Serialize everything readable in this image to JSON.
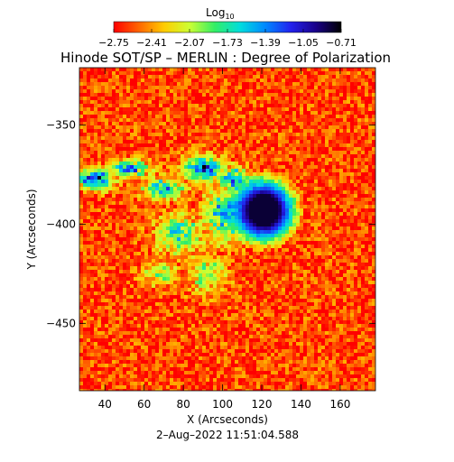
{
  "chart_data": {
    "type": "heatmap",
    "title": "Hinode SOT/SP – MERLIN : Degree of Polarization",
    "xlabel": "X (Arcseconds)",
    "ylabel": "Y (Arcseconds)",
    "xlim": [
      27,
      178
    ],
    "ylim": [
      -484,
      -321
    ],
    "xticks": [
      40,
      60,
      80,
      100,
      120,
      140,
      160
    ],
    "yticks": [
      -350,
      -400,
      -450
    ],
    "timestamp": "2–Aug–2022 11:51:04.588",
    "colorbar": {
      "label": "Log",
      "label_sub": "10",
      "ticks": [
        "−2.75",
        "−2.41",
        "−2.07",
        "−1.73",
        "−1.39",
        "−1.05",
        "−0.71"
      ],
      "range": [
        -2.75,
        -0.71
      ],
      "colors": [
        "#ff0000",
        "#ff6600",
        "#ffcc00",
        "#ccff33",
        "#33ee66",
        "#00dddd",
        "#0088ff",
        "#2222ee",
        "#1a0088",
        "#000000"
      ]
    },
    "features": {
      "sunspot": {
        "x": 121,
        "y": -393,
        "radius": 13,
        "log_dop": -0.8
      },
      "background_log_dop": -2.6
    }
  }
}
